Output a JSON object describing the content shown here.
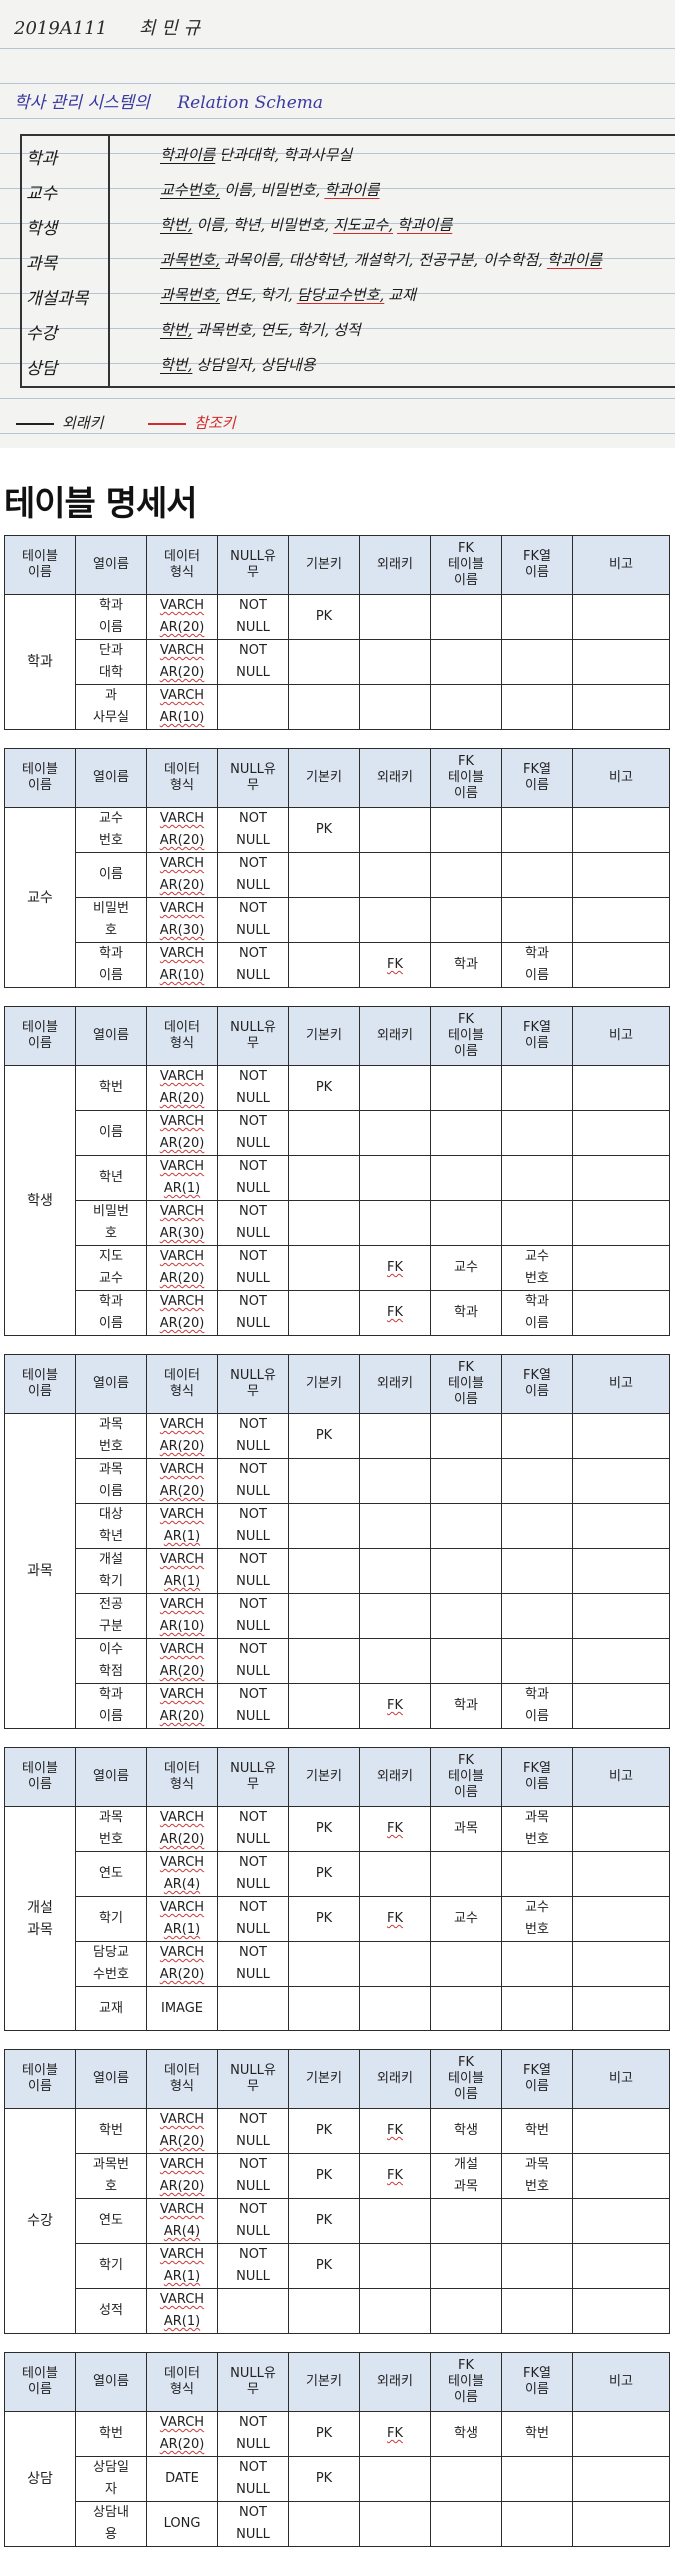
{
  "note": {
    "date": "2019A111",
    "author": "최 민 규",
    "subject": "학사 관리 시스템의",
    "subject_latin": "Relation   Schema",
    "relations": [
      {
        "name": "학과",
        "attrs": [
          {
            "t": "학과이름",
            "k": "pk"
          },
          {
            "t": "단과대학,"
          },
          {
            "t": "학과사무실"
          }
        ]
      },
      {
        "name": "교수",
        "attrs": [
          {
            "t": "교수번호,",
            "k": "pk"
          },
          {
            "t": "이름,"
          },
          {
            "t": "비밀번호,"
          },
          {
            "t": "학과이름",
            "k": "fk"
          }
        ]
      },
      {
        "name": "학생",
        "attrs": [
          {
            "t": "학번,",
            "k": "pk"
          },
          {
            "t": "이름,"
          },
          {
            "t": "학년,"
          },
          {
            "t": "비밀번호,"
          },
          {
            "t": "지도교수,",
            "k": "fk"
          },
          {
            "t": "학과이름",
            "k": "fk"
          }
        ]
      },
      {
        "name": "과목",
        "attrs": [
          {
            "t": "과목번호,",
            "k": "pk"
          },
          {
            "t": "과목이름, 대상학년, 개설학기, 전공구분, 이수학점,"
          },
          {
            "t": "학과이름",
            "k": "fk"
          }
        ]
      },
      {
        "name": "개설과목",
        "attrs": [
          {
            "t": "과목번호,",
            "k": "pk"
          },
          {
            "t": "연도,"
          },
          {
            "t": "학기,"
          },
          {
            "t": "담당교수번호,",
            "k": "fk"
          },
          {
            "t": "교재"
          }
        ]
      },
      {
        "name": "수강",
        "attrs": [
          {
            "t": "학번,",
            "k": "pk"
          },
          {
            "t": "과목번호,"
          },
          {
            "t": "연도,"
          },
          {
            "t": "학기,"
          },
          {
            "t": "성적"
          }
        ]
      },
      {
        "name": "상담",
        "attrs": [
          {
            "t": "학번,",
            "k": "pk"
          },
          {
            "t": "상담일자,"
          },
          {
            "t": "상담내용"
          }
        ]
      }
    ],
    "legend_pk": "외래키",
    "legend_fk": "참조키",
    "colors": {
      "pk_line": "#222222",
      "fk_line": "#d12b2b"
    }
  },
  "spec": {
    "heading": "테이블 명세서",
    "headers": [
      "테이블\n이름",
      "열이름",
      "데이터\n형식",
      "NULL유\n무",
      "기본키",
      "외래키",
      "FK\n테이블\n이름",
      "FK열\n이름",
      "비고"
    ],
    "tables": [
      {
        "name": "학과",
        "rows": [
          {
            "col": "학과\n이름",
            "type": "VARCH\nAR(20)",
            "null": "NOT\nNULL",
            "pk": "PK",
            "fk": "",
            "fkt": "",
            "fkc": ""
          },
          {
            "col": "단과\n대학",
            "type": "VARCH\nAR(20)",
            "null": "NOT\nNULL",
            "pk": "",
            "fk": "",
            "fkt": "",
            "fkc": ""
          },
          {
            "col": "과\n사무실",
            "type": "VARCH\nAR(10)",
            "null": "",
            "pk": "",
            "fk": "",
            "fkt": "",
            "fkc": ""
          }
        ]
      },
      {
        "name": "교수",
        "rows": [
          {
            "col": "교수\n번호",
            "type": "VARCH\nAR(20)",
            "null": "NOT\nNULL",
            "pk": "PK",
            "fk": "",
            "fkt": "",
            "fkc": ""
          },
          {
            "col": "이름",
            "type": "VARCH\nAR(20)",
            "null": "NOT\nNULL",
            "pk": "",
            "fk": "",
            "fkt": "",
            "fkc": ""
          },
          {
            "col": "비밀번\n호",
            "type": "VARCH\nAR(30)",
            "null": "NOT\nNULL",
            "pk": "",
            "fk": "",
            "fkt": "",
            "fkc": ""
          },
          {
            "col": "학과\n이름",
            "type": "VARCH\nAR(10)",
            "null": "NOT\nNULL",
            "pk": "",
            "fk": "FK",
            "fkt": "학과",
            "fkc": "학과\n이름"
          }
        ]
      },
      {
        "name": "학생",
        "rows": [
          {
            "col": "학번",
            "type": "VARCH\nAR(20)",
            "null": "NOT\nNULL",
            "pk": "PK",
            "fk": "",
            "fkt": "",
            "fkc": ""
          },
          {
            "col": "이름",
            "type": "VARCH\nAR(20)",
            "null": "NOT\nNULL",
            "pk": "",
            "fk": "",
            "fkt": "",
            "fkc": ""
          },
          {
            "col": "학년",
            "type": "VARCH\nAR(1)",
            "null": "NOT\nNULL",
            "pk": "",
            "fk": "",
            "fkt": "",
            "fkc": ""
          },
          {
            "col": "비밀번\n호",
            "type": "VARCH\nAR(30)",
            "null": "NOT\nNULL",
            "pk": "",
            "fk": "",
            "fkt": "",
            "fkc": ""
          },
          {
            "col": "지도\n교수",
            "type": "VARCH\nAR(20)",
            "null": "NOT\nNULL",
            "pk": "",
            "fk": "FK",
            "fkt": "교수",
            "fkc": "교수\n번호"
          },
          {
            "col": "학과\n이름",
            "type": "VARCH\nAR(20)",
            "null": "NOT\nNULL",
            "pk": "",
            "fk": "FK",
            "fkt": "학과",
            "fkc": "학과\n이름"
          }
        ]
      },
      {
        "name": "과목",
        "rows": [
          {
            "col": "과목\n번호",
            "type": "VARCH\nAR(20)",
            "null": "NOT\nNULL",
            "pk": "PK",
            "fk": "",
            "fkt": "",
            "fkc": ""
          },
          {
            "col": "과목\n이름",
            "type": "VARCH\nAR(20)",
            "null": "NOT\nNULL",
            "pk": "",
            "fk": "",
            "fkt": "",
            "fkc": ""
          },
          {
            "col": "대상\n학년",
            "type": "VARCH\nAR(1)",
            "null": "NOT\nNULL",
            "pk": "",
            "fk": "",
            "fkt": "",
            "fkc": ""
          },
          {
            "col": "개설\n학기",
            "type": "VARCH\nAR(1)",
            "null": "NOT\nNULL",
            "pk": "",
            "fk": "",
            "fkt": "",
            "fkc": ""
          },
          {
            "col": "전공\n구분",
            "type": "VARCH\nAR(10)",
            "null": "NOT\nNULL",
            "pk": "",
            "fk": "",
            "fkt": "",
            "fkc": ""
          },
          {
            "col": "이수\n학점",
            "type": "VARCH\nAR(20)",
            "null": "NOT\nNULL",
            "pk": "",
            "fk": "",
            "fkt": "",
            "fkc": ""
          },
          {
            "col": "학과\n이름",
            "type": "VARCH\nAR(20)",
            "null": "NOT\nNULL",
            "pk": "",
            "fk": "FK",
            "fkt": "학과",
            "fkc": "학과\n이름"
          }
        ]
      },
      {
        "name": "개설\n과목",
        "rows": [
          {
            "col": "과목\n번호",
            "type": "VARCH\nAR(20)",
            "null": "NOT\nNULL",
            "pk": "PK",
            "fk": "FK",
            "fkt": "과목",
            "fkc": "과목\n번호"
          },
          {
            "col": "연도",
            "type": "VARCH\nAR(4)",
            "null": "NOT\nNULL",
            "pk": "PK",
            "fk": "",
            "fkt": "",
            "fkc": ""
          },
          {
            "col": "학기",
            "type": "VARCH\nAR(1)",
            "null": "NOT\nNULL",
            "pk": "PK",
            "fk": "FK",
            "fkt": "교수",
            "fkc": "교수\n번호"
          },
          {
            "col": "담당교\n수번호",
            "type": "VARCH\nAR(20)",
            "null": "NOT\nNULL",
            "pk": "",
            "fk": "",
            "fkt": "",
            "fkc": ""
          },
          {
            "col": "교재",
            "type": "IMAGE",
            "null": "",
            "pk": "",
            "fk": "",
            "fkt": "",
            "fkc": ""
          }
        ]
      },
      {
        "name": "수강",
        "rows": [
          {
            "col": "학번",
            "type": "VARCH\nAR(20)",
            "null": "NOT\nNULL",
            "pk": "PK",
            "fk": "FK",
            "fkt": "학생",
            "fkc": "학번"
          },
          {
            "col": "과목번\n호",
            "type": "VARCH\nAR(20)",
            "null": "NOT\nNULL",
            "pk": "PK",
            "fk": "FK",
            "fkt": "개설\n과목",
            "fkc": "과목\n번호"
          },
          {
            "col": "연도",
            "type": "VARCH\nAR(4)",
            "null": "NOT\nNULL",
            "pk": "PK",
            "fk": "",
            "fkt": "",
            "fkc": ""
          },
          {
            "col": "학기",
            "type": "VARCH\nAR(1)",
            "null": "NOT\nNULL",
            "pk": "PK",
            "fk": "",
            "fkt": "",
            "fkc": ""
          },
          {
            "col": "성적",
            "type": "VARCH\nAR(1)",
            "null": "",
            "pk": "",
            "fk": "",
            "fkt": "",
            "fkc": ""
          }
        ]
      },
      {
        "name": "상담",
        "rows": [
          {
            "col": "학번",
            "type": "VARCH\nAR(20)",
            "null": "NOT\nNULL",
            "pk": "PK",
            "fk": "FK",
            "fkt": "학생",
            "fkc": "학번"
          },
          {
            "col": "상담일\n자",
            "type": "DATE",
            "null": "NOT\nNULL",
            "pk": "PK",
            "fk": "",
            "fkt": "",
            "fkc": ""
          },
          {
            "col": "상담내\n용",
            "type": "LONG",
            "null": "NOT\nNULL",
            "pk": "",
            "fk": "",
            "fkt": "",
            "fkc": ""
          }
        ]
      }
    ]
  }
}
